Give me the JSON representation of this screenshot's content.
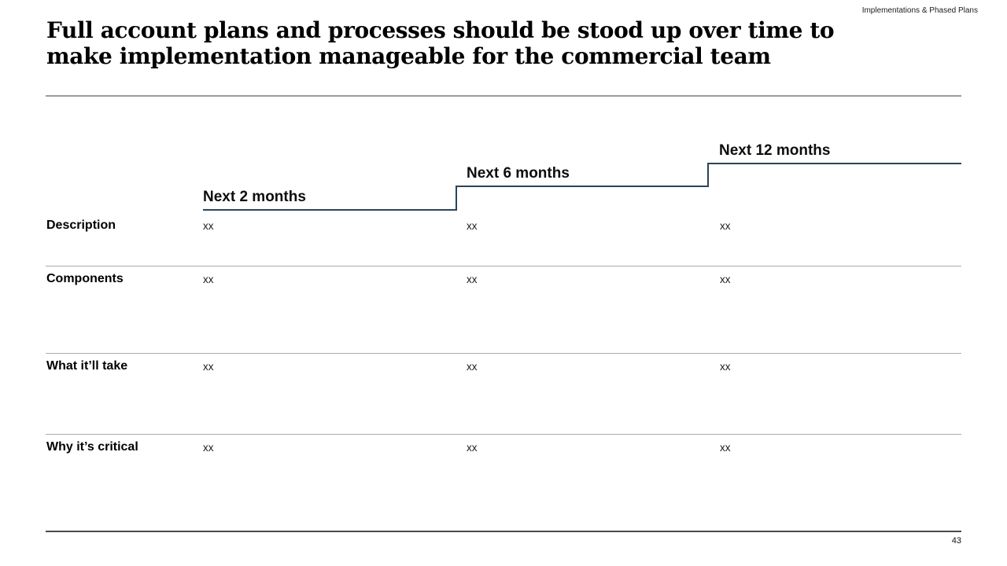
{
  "slide": {
    "category_tag": "Implementations & Phased Plans",
    "title_lines": [
      "Full account plans and processes should be stood up over time to",
      "make implementation manageable for the commercial team"
    ],
    "page_number": "43"
  },
  "table": {
    "columns": [
      {
        "label": "Next 2 months"
      },
      {
        "label": "Next 6 months"
      },
      {
        "label": "Next 12 months"
      }
    ],
    "rows": [
      {
        "label": "Description",
        "cells": [
          "xx",
          "xx",
          "xx"
        ]
      },
      {
        "label": "Components",
        "cells": [
          "xx",
          "xx",
          "xx"
        ]
      },
      {
        "label": "What it’ll take",
        "cells": [
          "xx",
          "xx",
          "xx"
        ]
      },
      {
        "label": "Why it’s critical",
        "cells": [
          "xx",
          "xx",
          "xx"
        ]
      }
    ]
  },
  "colors": {
    "stair_line": "#2b4559",
    "title_divider": "#9c9c9c",
    "row_separator": "#ababab",
    "footer_line": "#4a4a4a"
  }
}
